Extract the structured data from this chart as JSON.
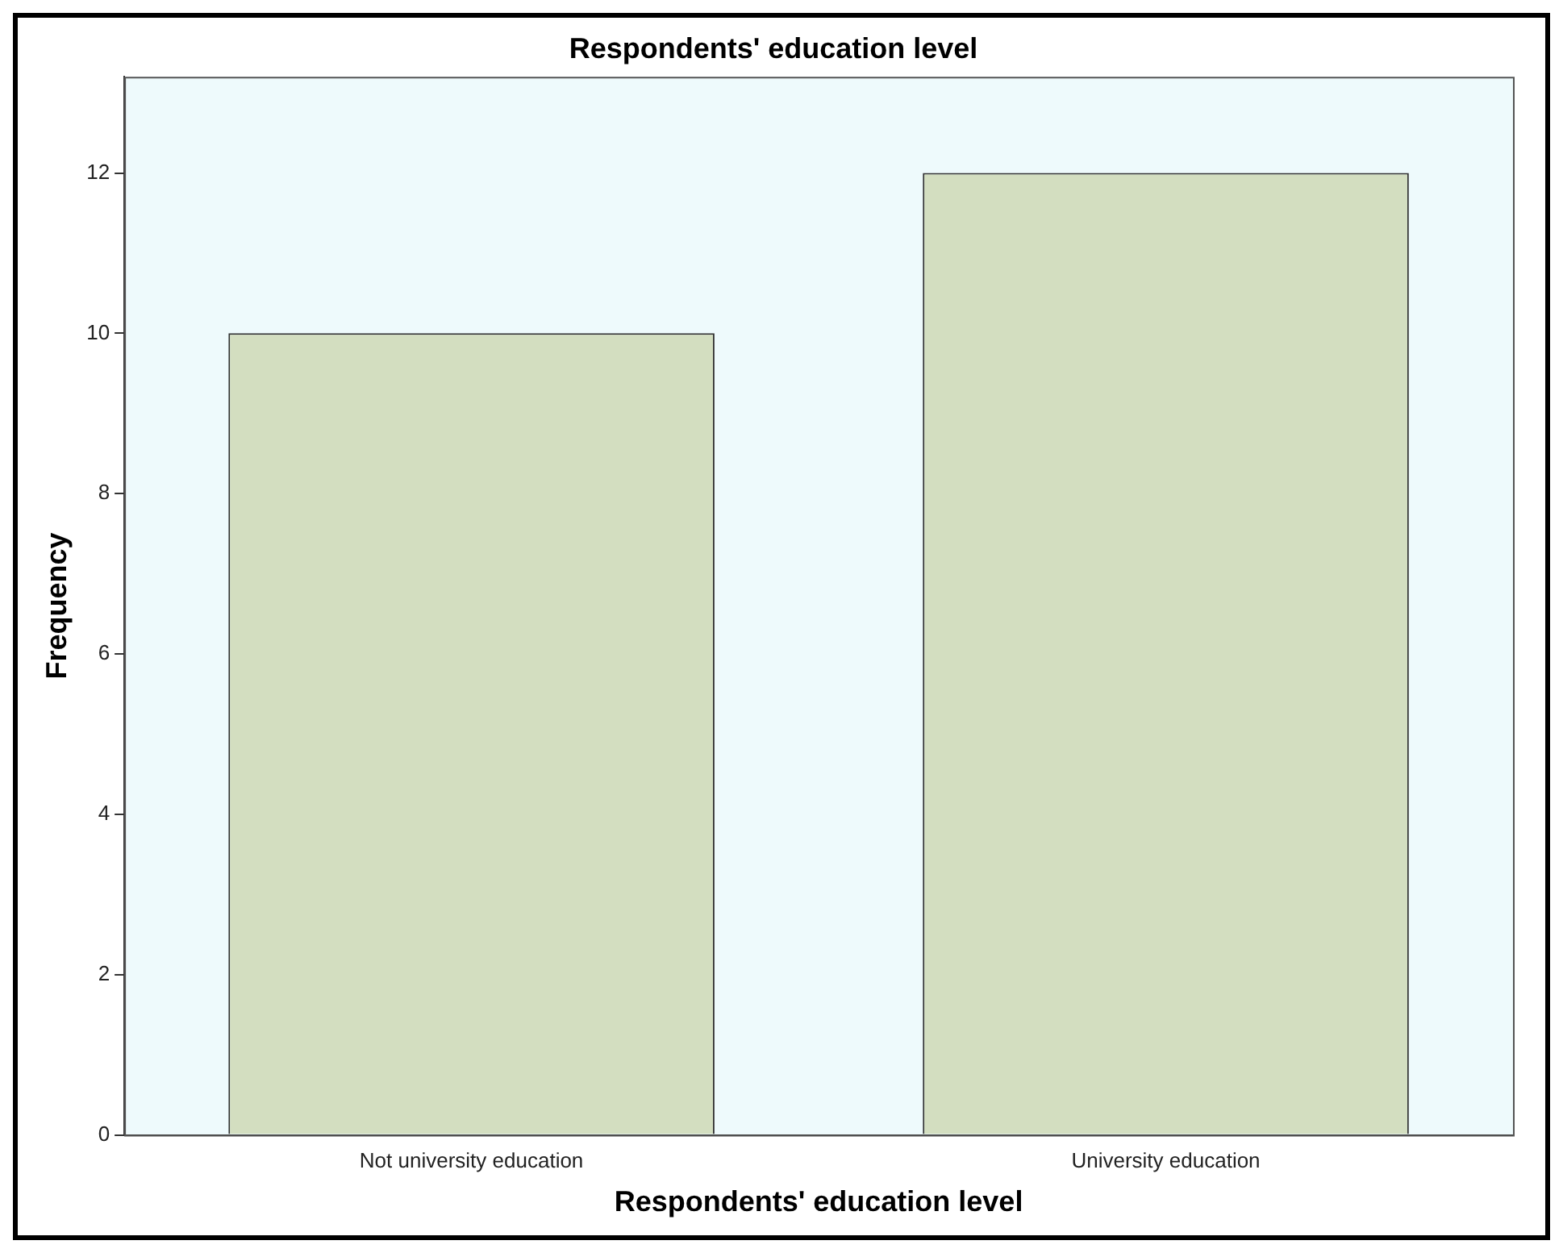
{
  "chart_data": {
    "type": "bar",
    "title": "Respondents' education level",
    "xlabel": "Respondents' education level",
    "ylabel": "Frequency",
    "categories": [
      "Not university education",
      "University education"
    ],
    "values": [
      10,
      12
    ],
    "color": "#d3dec0",
    "ylim": [
      0,
      13.2
    ],
    "yticks": [
      0,
      2,
      4,
      6,
      8,
      10,
      12
    ],
    "grid": false,
    "legend": false
  }
}
